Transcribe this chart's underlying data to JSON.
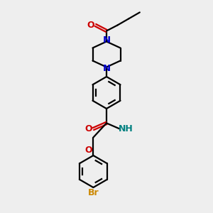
{
  "bg_color": "#eeeeee",
  "bond_color": "#000000",
  "N_color": "#0000cc",
  "O_color": "#cc0000",
  "Br_color": "#cc8800",
  "NH_color": "#008080",
  "line_width": 1.6,
  "figsize": [
    3.0,
    3.0
  ],
  "dpi": 100,
  "xlim": [
    0,
    10
  ],
  "ylim": [
    0,
    10
  ]
}
